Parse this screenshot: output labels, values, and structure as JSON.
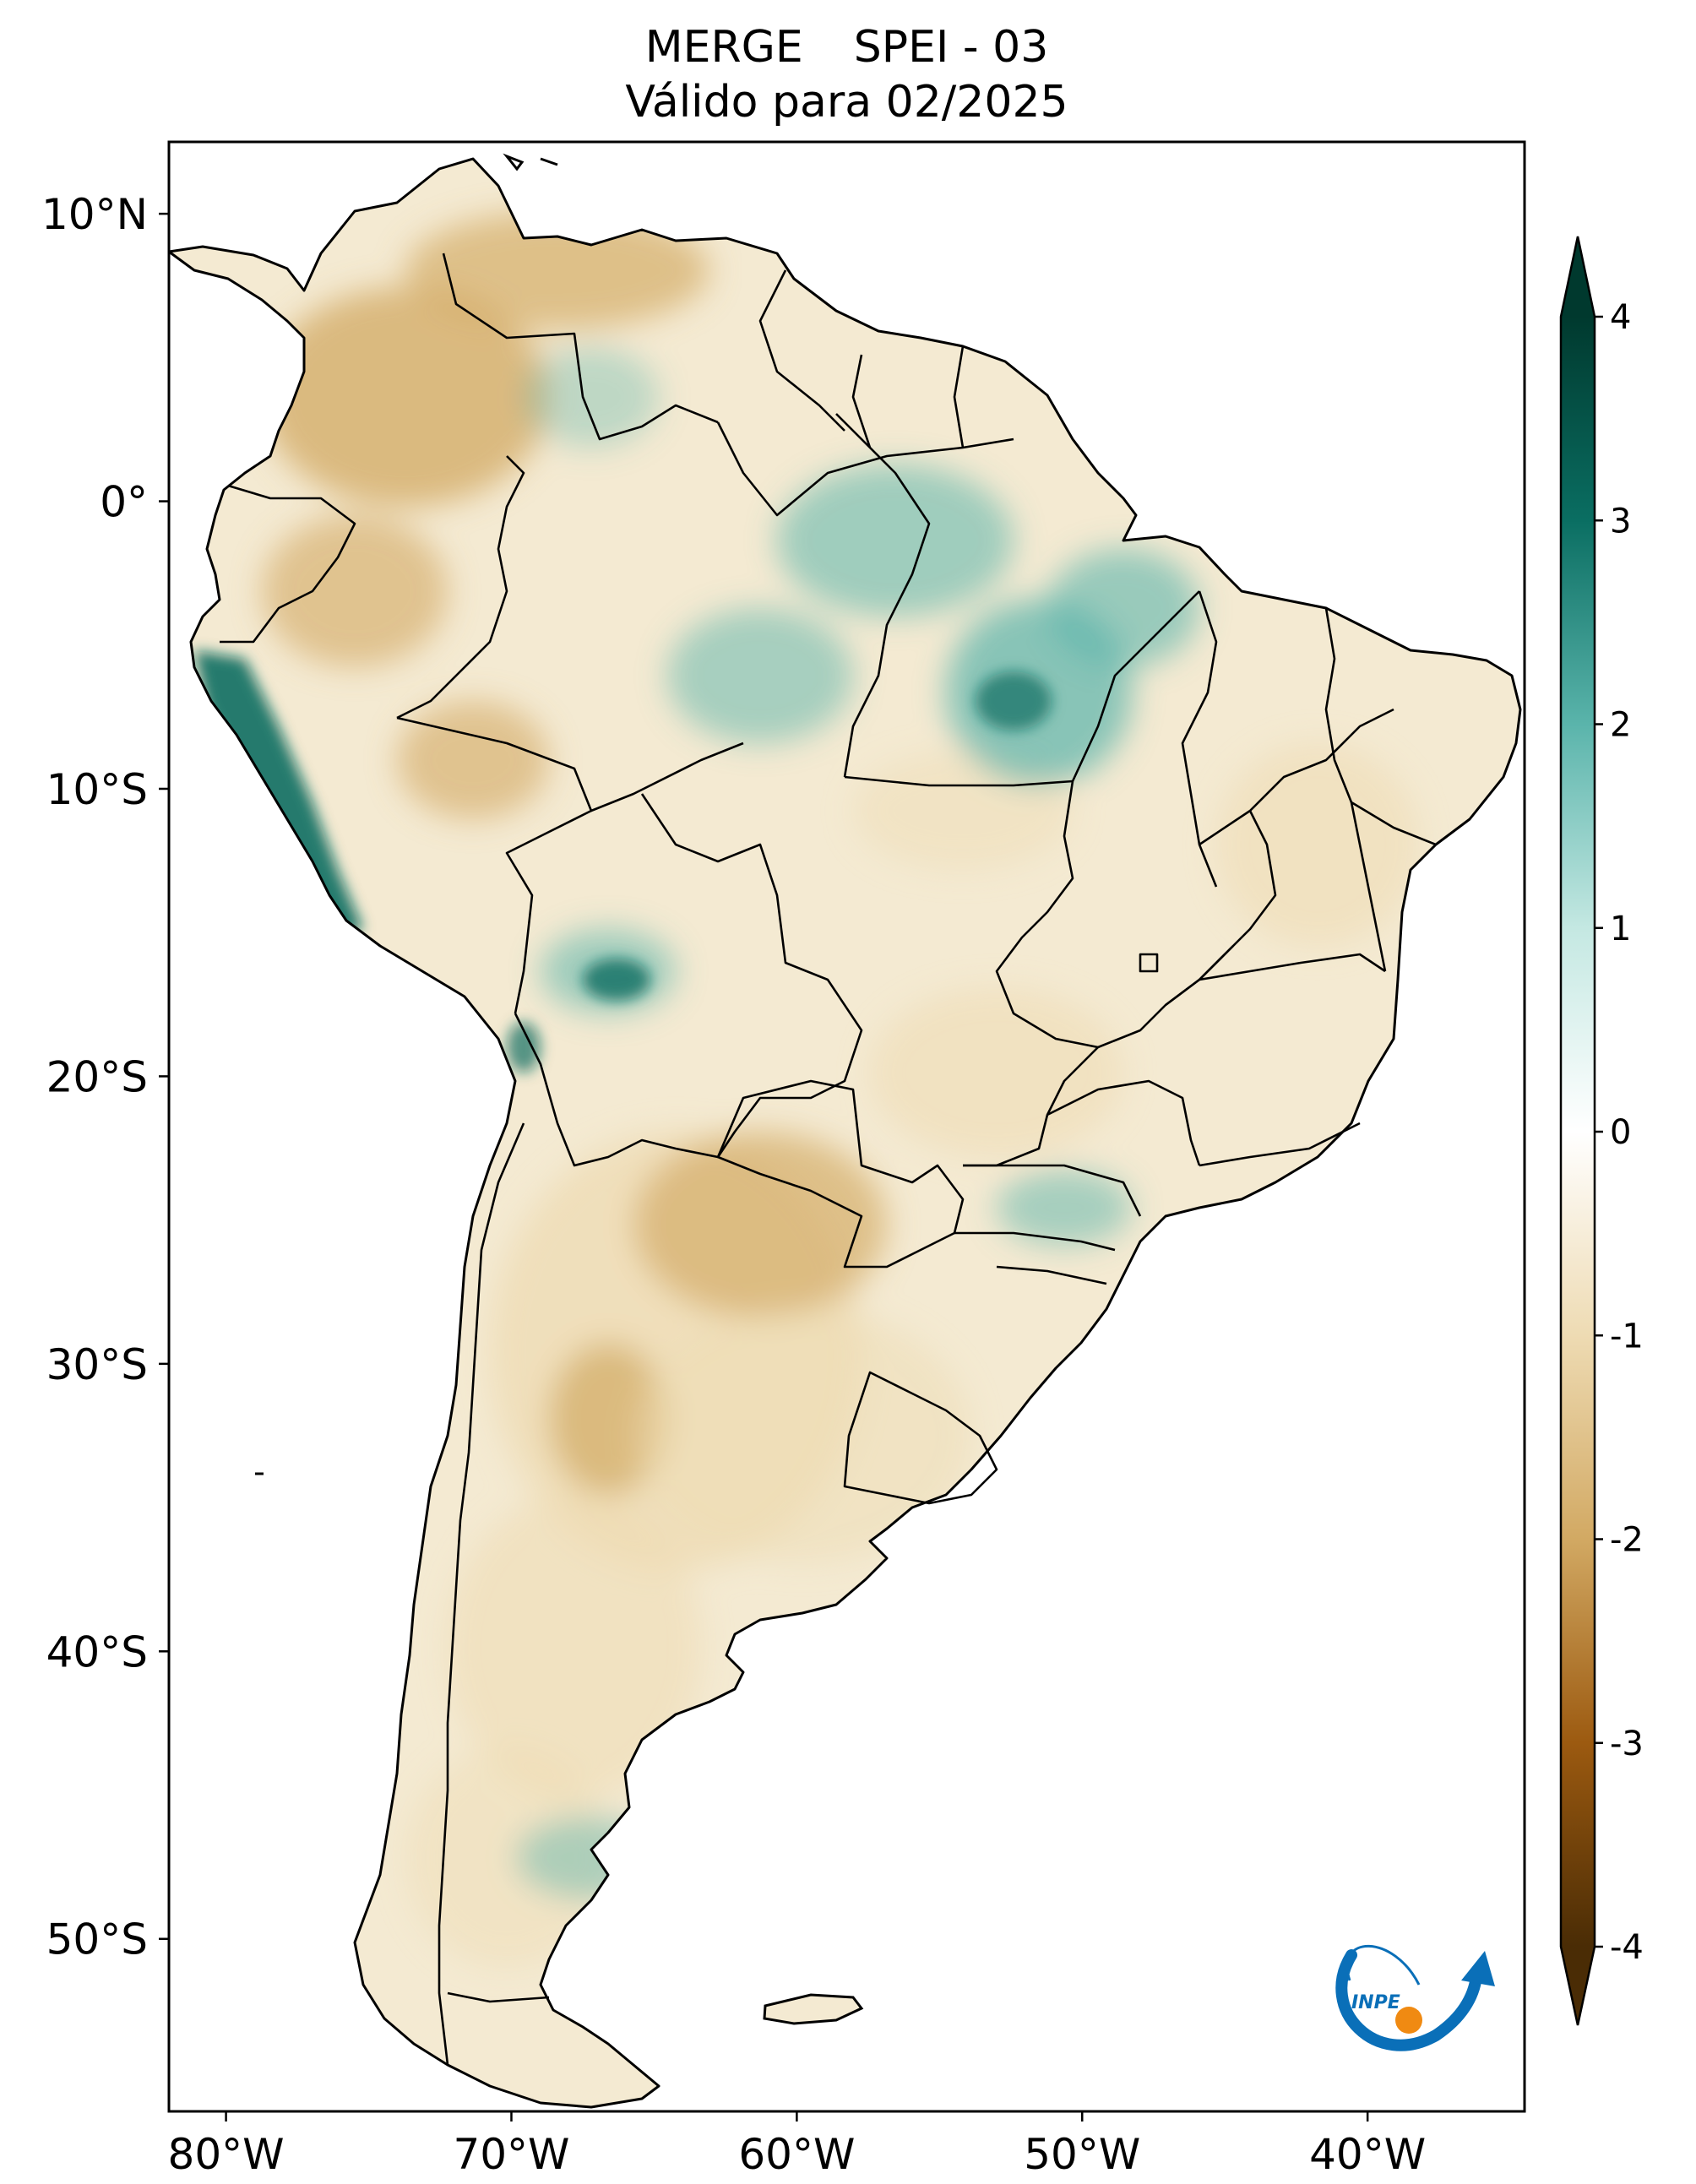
{
  "title": {
    "dataset": "MERGE",
    "index": "SPEI - 03",
    "subtitle": "Válido para 02/2025"
  },
  "map": {
    "region": "South America",
    "lon_range": [
      -82,
      -34.5
    ],
    "lat_range": [
      -56,
      12.5
    ],
    "lat_ticks": [
      "10°N",
      "0°",
      "10°S",
      "20°S",
      "30°S",
      "40°S",
      "50°S"
    ],
    "lon_ticks": [
      "80°W",
      "70°W",
      "60°W",
      "50°W",
      "40°W"
    ],
    "lat_tick_values": [
      10,
      0,
      -10,
      -20,
      -30,
      -40,
      -50
    ],
    "lon_tick_values": [
      -80,
      -70,
      -60,
      -50,
      -40
    ]
  },
  "colorbar": {
    "ticks": [
      "4",
      "3",
      "2",
      "1",
      "0",
      "-1",
      "-2",
      "-3",
      "-4"
    ],
    "tick_values": [
      4,
      3,
      2,
      1,
      0,
      -1,
      -2,
      -3,
      -4
    ],
    "range": [
      -4,
      4
    ],
    "extend": "both",
    "colors": {
      "max": "#00392e",
      "high": "#0a6e62",
      "mid_high": "#5ab4ab",
      "low_pos": "#c4e8e2",
      "zero": "#ffffff",
      "low_neg": "#eedbb3",
      "mid_low": "#d2a963",
      "low": "#9c5a10",
      "min": "#4a2c05"
    }
  },
  "logo": {
    "text": "INPE",
    "colors": {
      "arrow": "#0a6fb8",
      "dot": "#f08a12"
    }
  }
}
